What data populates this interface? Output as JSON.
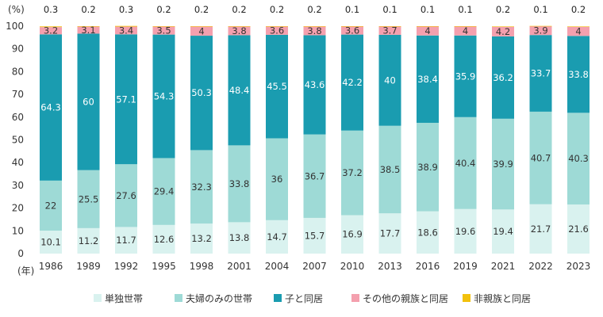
{
  "chart_data": {
    "type": "bar",
    "stacked": true,
    "y_unit_label": "(%)",
    "x_unit_label": "(年)",
    "ylim": [
      0,
      100
    ],
    "y_ticks": [
      0,
      10,
      20,
      30,
      40,
      50,
      60,
      70,
      80,
      90,
      100
    ],
    "grid": false,
    "legend_position": "bottom",
    "categories": [
      "1986",
      "1989",
      "1992",
      "1995",
      "1998",
      "2001",
      "2004",
      "2007",
      "2010",
      "2013",
      "2016",
      "2019",
      "2021",
      "2022",
      "2023"
    ],
    "series": [
      {
        "name": "単独世帯",
        "color": "#d9f2ef",
        "label_color": "#333333",
        "values": [
          10.1,
          11.2,
          11.7,
          12.6,
          13.2,
          13.8,
          14.7,
          15.7,
          16.9,
          17.7,
          18.6,
          19.6,
          19.4,
          21.7,
          21.6
        ]
      },
      {
        "name": "夫婦のみの世帯",
        "color": "#9edad6",
        "label_color": "#333333",
        "values": [
          22,
          25.5,
          27.6,
          29.4,
          32.3,
          33.8,
          36,
          36.7,
          37.2,
          38.5,
          38.9,
          40.4,
          39.9,
          40.7,
          40.3
        ]
      },
      {
        "name": "子と同居",
        "color": "#1a9cb0",
        "label_color": "#ffffff",
        "values": [
          64.3,
          60,
          57.1,
          54.3,
          50.3,
          48.4,
          45.5,
          43.6,
          42.2,
          40,
          38.4,
          35.9,
          36.2,
          33.7,
          33.8
        ]
      },
      {
        "name": "その他の親族と同居",
        "color": "#f4a0ae",
        "label_color": "#333333",
        "values": [
          3.2,
          3.1,
          3.4,
          3.5,
          4,
          3.8,
          3.6,
          3.8,
          3.6,
          3.7,
          4,
          4,
          4.2,
          3.9,
          4
        ]
      },
      {
        "name": "非親族と同居",
        "color": "#f2c10d",
        "label_color": "#222222",
        "values": [
          0.3,
          0.2,
          0.3,
          0.2,
          0.2,
          0.2,
          0.2,
          0.2,
          0.1,
          0.1,
          0.1,
          0.1,
          0.2,
          0.1,
          0.2
        ]
      }
    ]
  }
}
